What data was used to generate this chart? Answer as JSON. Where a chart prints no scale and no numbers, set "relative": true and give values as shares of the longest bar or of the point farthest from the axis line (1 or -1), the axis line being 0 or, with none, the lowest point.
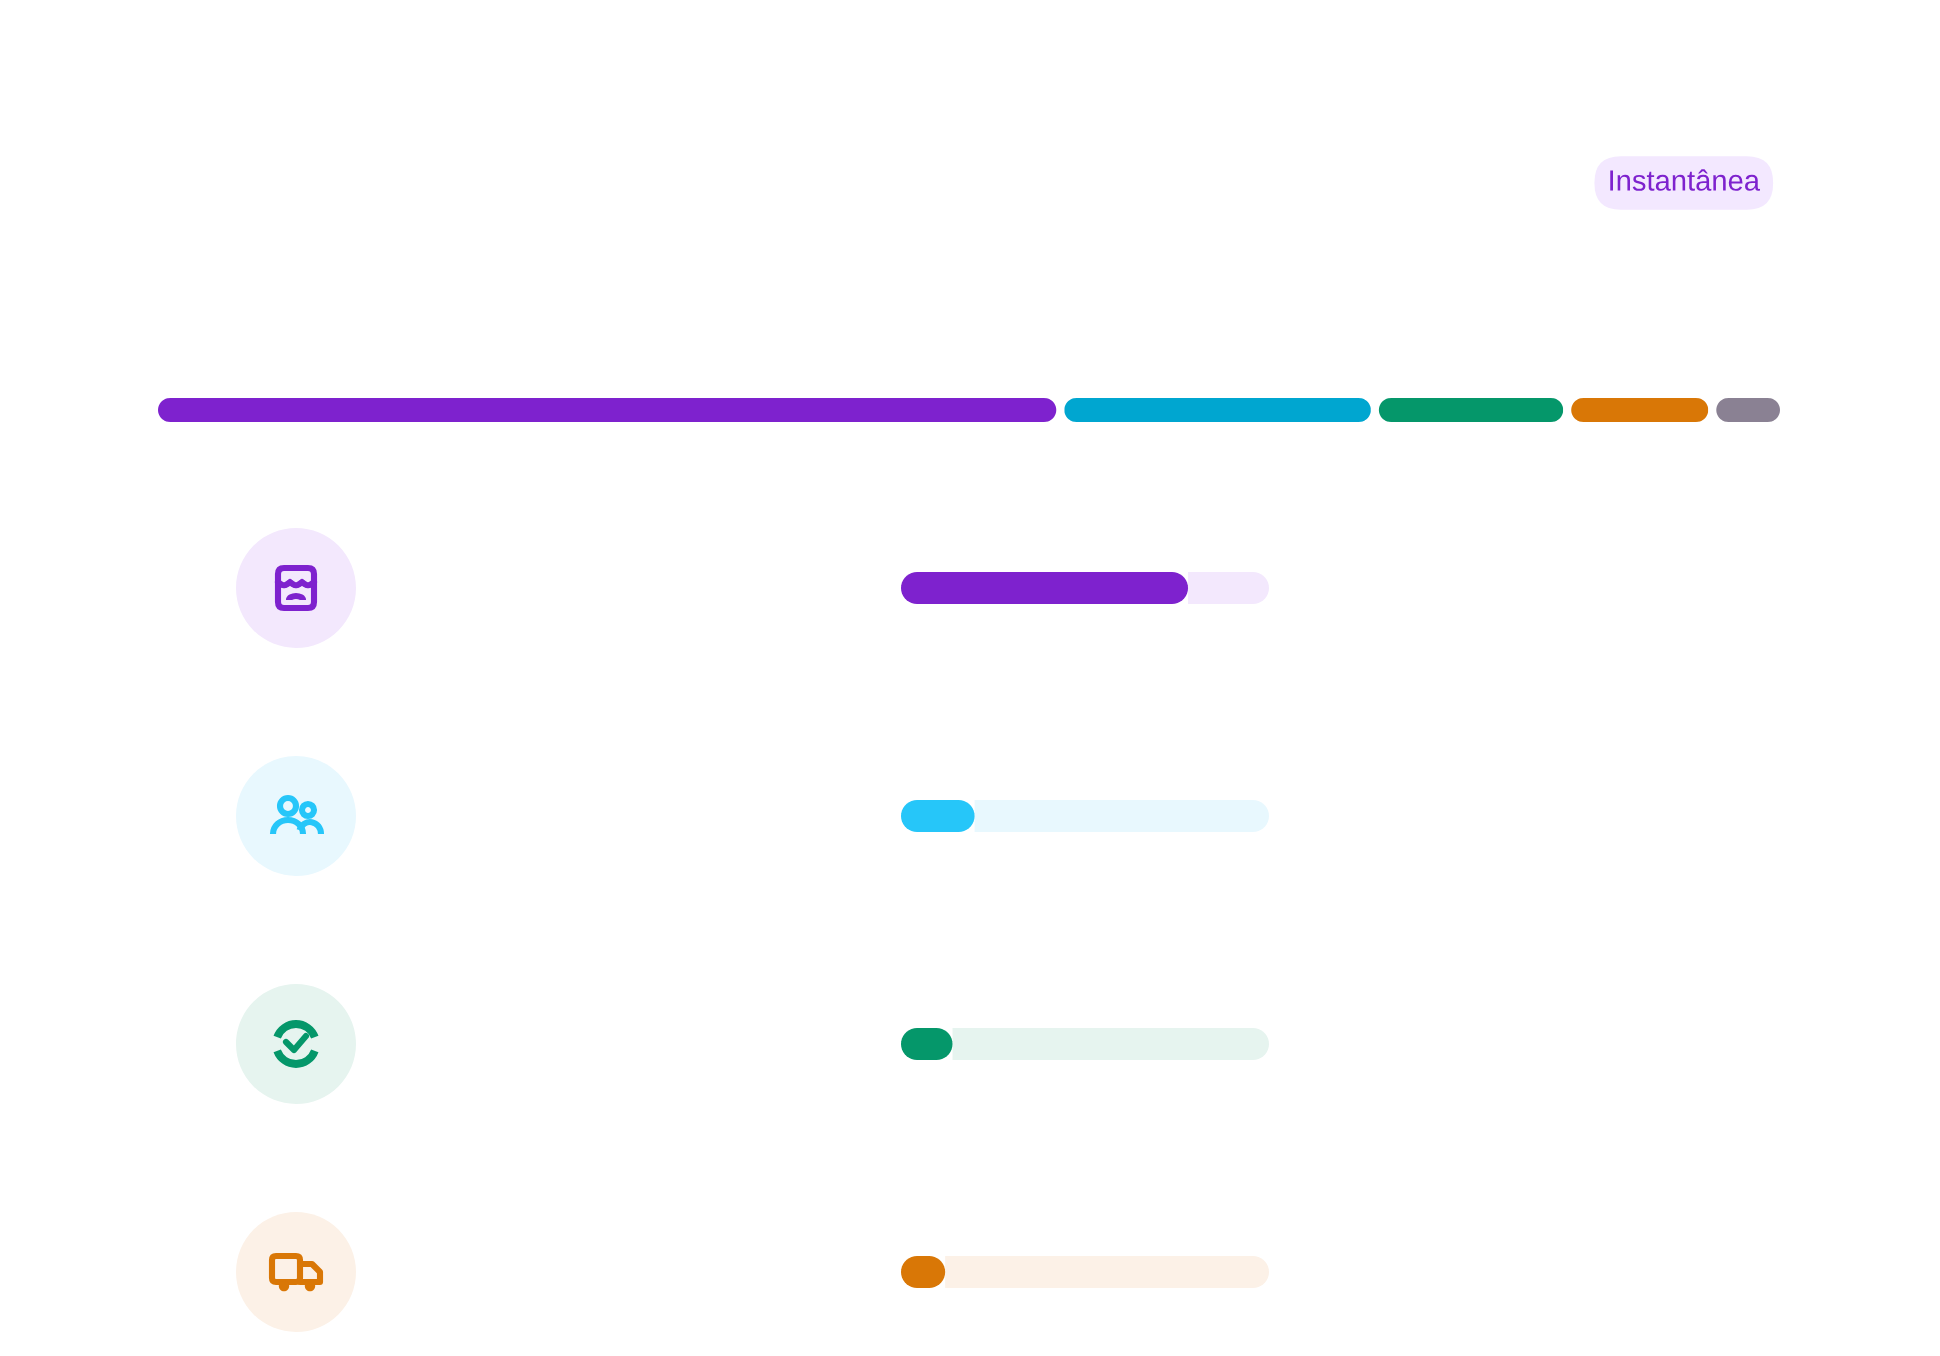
{
  "chart_data": [
    {
      "type": "bar",
      "orientation": "horizontal",
      "stacked": true,
      "relative": true,
      "categories": [
        null
      ],
      "series": [
        {
          "color": "#7e22ce",
          "values": [
            0.556
          ]
        },
        {
          "color": "#00a6d0",
          "values": [
            0.193
          ]
        },
        {
          "color": "#05976a",
          "values": [
            0.118
          ]
        },
        {
          "color": "#d97706",
          "values": [
            0.089
          ]
        },
        {
          "color": "#8a8193",
          "values": [
            0.044
          ]
        }
      ],
      "annotations": [
        "Instantânea"
      ]
    },
    {
      "type": "bar",
      "orientation": "horizontal",
      "stacked": true,
      "relative": true,
      "categories": [
        null,
        null,
        null,
        null
      ],
      "series": [
        {
          "colors": [
            "#7e22ce",
            "#26c6f9",
            "#05976a",
            "#d97706"
          ],
          "values": [
            0.78,
            0.2,
            0.14,
            0.12
          ]
        },
        {
          "colors": [
            "#f3e8fd",
            "#e8f8fe",
            "#e6f4ef",
            "#fcf1e7"
          ],
          "values": [
            0.22,
            0.8,
            0.86,
            0.88
          ]
        }
      ]
    }
  ]
}
